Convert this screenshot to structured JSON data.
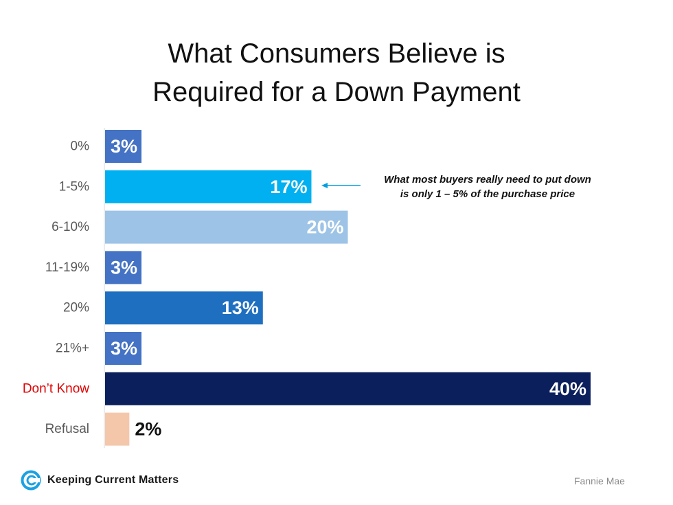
{
  "chart_data": {
    "type": "bar",
    "orientation": "horizontal",
    "title_lines": [
      "What Consumers Believe is",
      "Required for a Down Payment"
    ],
    "categories": [
      "0%",
      "1-5%",
      "6-10%",
      "11-19%",
      "20%",
      "21%+",
      "Don’t Know",
      "Refusal"
    ],
    "values": [
      3,
      17,
      20,
      3,
      13,
      3,
      40,
      2
    ],
    "value_labels": [
      "3%",
      "17%",
      "20%",
      "3%",
      "13%",
      "3%",
      "40%",
      "2%"
    ],
    "bar_colors": [
      "#4472c4",
      "#00b0f0",
      "#9dc3e6",
      "#4472c4",
      "#1f6fc0",
      "#4472c4",
      "#0b1f5c",
      "#f4c7ab"
    ],
    "category_label_colors": [
      "#595959",
      "#595959",
      "#595959",
      "#595959",
      "#595959",
      "#595959",
      "#e00000",
      "#595959"
    ],
    "xlim": [
      0,
      40
    ],
    "grid": false,
    "legend": "none",
    "annotation": {
      "lines": [
        "What most buyers really need to put down",
        "is only 1 – 5% of the purchase price"
      ],
      "points_to": "1-5%"
    }
  },
  "footer": {
    "brand": "Keeping Current Matters",
    "source": "Fannie Mae"
  },
  "icons": {
    "brand_logo": "kcm-logo-icon",
    "annotation_arrow": "arrow-left-icon"
  }
}
